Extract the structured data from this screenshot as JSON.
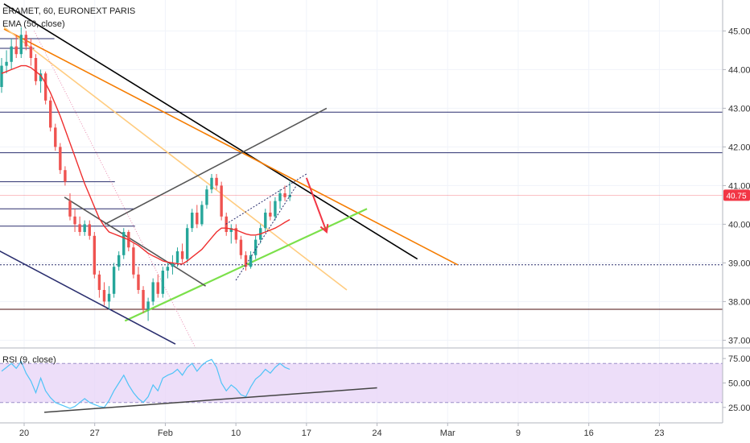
{
  "header": {
    "symbol_line": "ERAMET, 60, EURONEXT PARIS",
    "indicator_line": "EMA (50, close)",
    "rsi_label": "RSI (9, close)"
  },
  "price_badge": {
    "value": "40.75",
    "color": "#f23645"
  },
  "colors": {
    "up": "#26a69a",
    "down": "#ef5350",
    "ema": "#ef2e2e",
    "rsi": "#4fc3f7",
    "rsi_band": "#e9d6f7",
    "grid": "#f0f3fa",
    "black_trend": "#000000",
    "orange_trend": "#f57c00",
    "light_orange": "#ffcc80",
    "green_trend": "#7be04a",
    "arrow": "#f23645",
    "navy_line": "#2a2e6e",
    "dark_red_line": "#4a0d0d",
    "gray_channel": "#555555"
  },
  "chart_data": [
    {
      "type": "candlestick",
      "title": "ERAMET, 60, EURONEXT PARIS",
      "x_tick_labels": [
        "20",
        "27",
        "Feb",
        "10",
        "17",
        "24",
        "Mar",
        "9",
        "16",
        "23"
      ],
      "y_tick_labels": [
        "37.00",
        "38.00",
        "39.00",
        "40.00",
        "41.00",
        "42.00",
        "43.00",
        "44.00",
        "45.00"
      ],
      "ylim": [
        36.8,
        45.8
      ],
      "last_price": 40.75,
      "candles": [
        [
          43.55,
          44.3,
          43.4,
          44.1
        ],
        [
          44.1,
          44.5,
          43.9,
          44.2
        ],
        [
          44.2,
          44.8,
          44.0,
          44.6
        ],
        [
          44.6,
          44.9,
          44.3,
          44.4
        ],
        [
          44.4,
          45.1,
          44.3,
          44.9
        ],
        [
          44.9,
          45.0,
          44.5,
          44.6
        ],
        [
          44.6,
          44.8,
          44.1,
          44.3
        ],
        [
          44.3,
          44.4,
          43.6,
          43.7
        ],
        [
          43.7,
          44.0,
          43.4,
          43.9
        ],
        [
          43.9,
          43.95,
          43.1,
          43.2
        ],
        [
          43.2,
          43.3,
          42.4,
          42.5
        ],
        [
          42.5,
          42.6,
          41.9,
          42.0
        ],
        [
          42.0,
          42.1,
          41.3,
          41.4
        ],
        [
          41.4,
          41.5,
          41.0,
          41.1
        ],
        [
          40.6,
          40.8,
          40.1,
          40.2
        ],
        [
          40.2,
          40.4,
          39.8,
          40.0
        ],
        [
          40.0,
          40.2,
          39.7,
          39.8
        ],
        [
          39.8,
          40.1,
          39.7,
          40.0
        ],
        [
          40.0,
          40.1,
          39.6,
          39.7
        ],
        [
          39.7,
          39.8,
          38.6,
          38.7
        ],
        [
          38.7,
          38.8,
          38.1,
          38.3
        ],
        [
          38.3,
          38.5,
          37.9,
          38.0
        ],
        [
          38.0,
          38.4,
          37.8,
          38.2
        ],
        [
          38.2,
          39.0,
          38.1,
          38.9
        ],
        [
          38.9,
          39.3,
          38.8,
          39.2
        ],
        [
          39.2,
          39.9,
          39.1,
          39.8
        ],
        [
          39.8,
          39.85,
          39.3,
          39.4
        ],
        [
          39.4,
          39.5,
          38.6,
          38.7
        ],
        [
          38.7,
          38.9,
          38.2,
          38.3
        ],
        [
          38.3,
          38.4,
          37.7,
          37.8
        ],
        [
          37.8,
          38.1,
          37.5,
          38.0
        ],
        [
          38.0,
          38.6,
          37.9,
          38.5
        ],
        [
          38.5,
          38.7,
          38.1,
          38.2
        ],
        [
          38.2,
          38.9,
          38.1,
          38.8
        ],
        [
          38.8,
          39.0,
          38.6,
          38.9
        ],
        [
          38.9,
          39.2,
          38.7,
          39.0
        ],
        [
          39.0,
          39.4,
          38.9,
          39.3
        ],
        [
          39.3,
          39.5,
          39.0,
          39.1
        ],
        [
          39.1,
          40.0,
          39.0,
          39.9
        ],
        [
          39.9,
          40.4,
          39.8,
          40.3
        ],
        [
          40.3,
          40.5,
          39.9,
          40.0
        ],
        [
          40.0,
          40.6,
          39.95,
          40.5
        ],
        [
          40.5,
          41.0,
          40.4,
          40.9
        ],
        [
          40.9,
          41.3,
          40.8,
          41.2
        ],
        [
          41.2,
          41.3,
          40.9,
          41.0
        ],
        [
          41.0,
          41.1,
          40.1,
          40.2
        ],
        [
          40.2,
          40.3,
          39.7,
          39.8
        ],
        [
          39.8,
          40.0,
          39.5,
          39.9
        ],
        [
          39.9,
          40.0,
          39.5,
          39.6
        ],
        [
          39.6,
          39.7,
          39.1,
          39.2
        ],
        [
          39.2,
          39.3,
          38.8,
          38.9
        ],
        [
          38.9,
          39.3,
          38.85,
          39.2
        ],
        [
          39.2,
          39.7,
          39.1,
          39.6
        ],
        [
          39.6,
          40.0,
          39.5,
          39.9
        ],
        [
          39.9,
          40.4,
          39.8,
          40.3
        ],
        [
          40.3,
          40.6,
          40.1,
          40.2
        ],
        [
          40.2,
          40.7,
          40.1,
          40.6
        ],
        [
          40.6,
          40.9,
          40.4,
          40.8
        ],
        [
          40.8,
          41.0,
          40.6,
          40.7
        ],
        [
          40.7,
          41.1,
          40.6,
          40.75
        ]
      ],
      "ema_50": [
        43.9,
        43.95,
        44.0,
        44.05,
        44.1,
        44.1,
        44.05,
        43.95,
        43.85,
        43.65,
        43.4,
        43.1,
        42.8,
        42.45,
        42.1,
        41.75,
        41.4,
        41.05,
        40.75,
        40.45,
        40.15,
        39.95,
        39.8,
        39.75,
        39.7,
        39.65,
        39.6,
        39.52,
        39.45,
        39.35,
        39.25,
        39.18,
        39.12,
        39.05,
        39.02,
        39.0,
        38.98,
        38.97,
        39.05,
        39.15,
        39.25,
        39.35,
        39.5,
        39.65,
        39.8,
        39.9,
        39.9,
        39.88,
        39.85,
        39.8,
        39.75,
        39.72,
        39.72,
        39.75,
        39.8,
        39.85,
        39.9,
        39.97,
        40.05,
        40.12
      ],
      "horizontal_levels": [
        {
          "price": 44.8,
          "x_end": "Jan 23",
          "color": "#2a2e6e"
        },
        {
          "price": 44.55,
          "x_end": "Jan 21",
          "color": "#2a2e6e"
        },
        {
          "price": 42.9,
          "x_end": "chart right edge",
          "color": "#2a2e6e"
        },
        {
          "price": 41.85,
          "x_end": "chart right edge",
          "color": "#2a2e6e"
        },
        {
          "price": 41.1,
          "x_end": "Jan 29",
          "color": "#2a2e6e"
        },
        {
          "price": 40.4,
          "x_end": "Jan 31",
          "color": "#2a2e6e"
        },
        {
          "price": 39.95,
          "x_end": "Jan 31",
          "color": "#2a2e6e"
        },
        {
          "price": 38.95,
          "style": "dotted",
          "color": "#2a2e6e"
        },
        {
          "price": 37.8,
          "color": "#4a0d0d"
        }
      ],
      "trend_lines": [
        {
          "name": "black descending",
          "from": [
            "Jan 18",
            45.7
          ],
          "to": [
            "Feb 28",
            39.1
          ],
          "color": "#000000"
        },
        {
          "name": "orange descending",
          "from": [
            "Jan 18",
            45.05
          ],
          "to": [
            "Mar 3",
            38.95
          ],
          "color": "#f57c00"
        },
        {
          "name": "light orange descending",
          "from": [
            "Jan 18",
            45.1
          ],
          "to": [
            "Feb 21",
            38.3
          ],
          "color": "#ffcc80"
        },
        {
          "name": "green ascending support",
          "from": [
            "Jan 30",
            37.5
          ],
          "to": [
            "Feb 23",
            40.4
          ],
          "color": "#7be04a"
        },
        {
          "name": "gray channel top",
          "from": [
            "Jan 28",
            40.0
          ],
          "to": [
            "Feb 19",
            43.0
          ],
          "color": "#555555"
        },
        {
          "name": "gray channel bottom",
          "from": [
            "Jan 24",
            40.7
          ],
          "to": [
            "Feb 7",
            38.4
          ],
          "color": "#555555"
        },
        {
          "name": "navy lower channel",
          "from": [
            "Jan 14",
            39.8
          ],
          "to": [
            "Feb 4",
            36.9
          ],
          "color": "#2a2e6e"
        }
      ],
      "arrow": {
        "from": [
          "Feb 17",
          41.2
        ],
        "to": [
          "Feb 19",
          39.8
        ],
        "color": "#f23645"
      }
    },
    {
      "type": "line",
      "title": "RSI (9, close)",
      "y_tick_labels": [
        "25.00",
        "50.00",
        "75.00"
      ],
      "ylim": [
        10,
        85
      ],
      "band": [
        30,
        70
      ],
      "values": [
        62,
        66,
        70,
        65,
        72,
        60,
        52,
        40,
        55,
        42,
        35,
        30,
        28,
        26,
        24,
        26,
        30,
        34,
        30,
        28,
        26,
        25,
        32,
        42,
        50,
        58,
        48,
        40,
        34,
        30,
        36,
        48,
        42,
        55,
        58,
        60,
        64,
        58,
        66,
        70,
        62,
        68,
        72,
        74,
        66,
        50,
        42,
        48,
        44,
        38,
        36,
        46,
        54,
        58,
        64,
        60,
        66,
        70,
        66,
        64
      ],
      "trend_line": {
        "from": [
          "Jan 22",
          20
        ],
        "to": [
          "Feb 24",
          45
        ],
        "color": "#444444"
      }
    }
  ]
}
